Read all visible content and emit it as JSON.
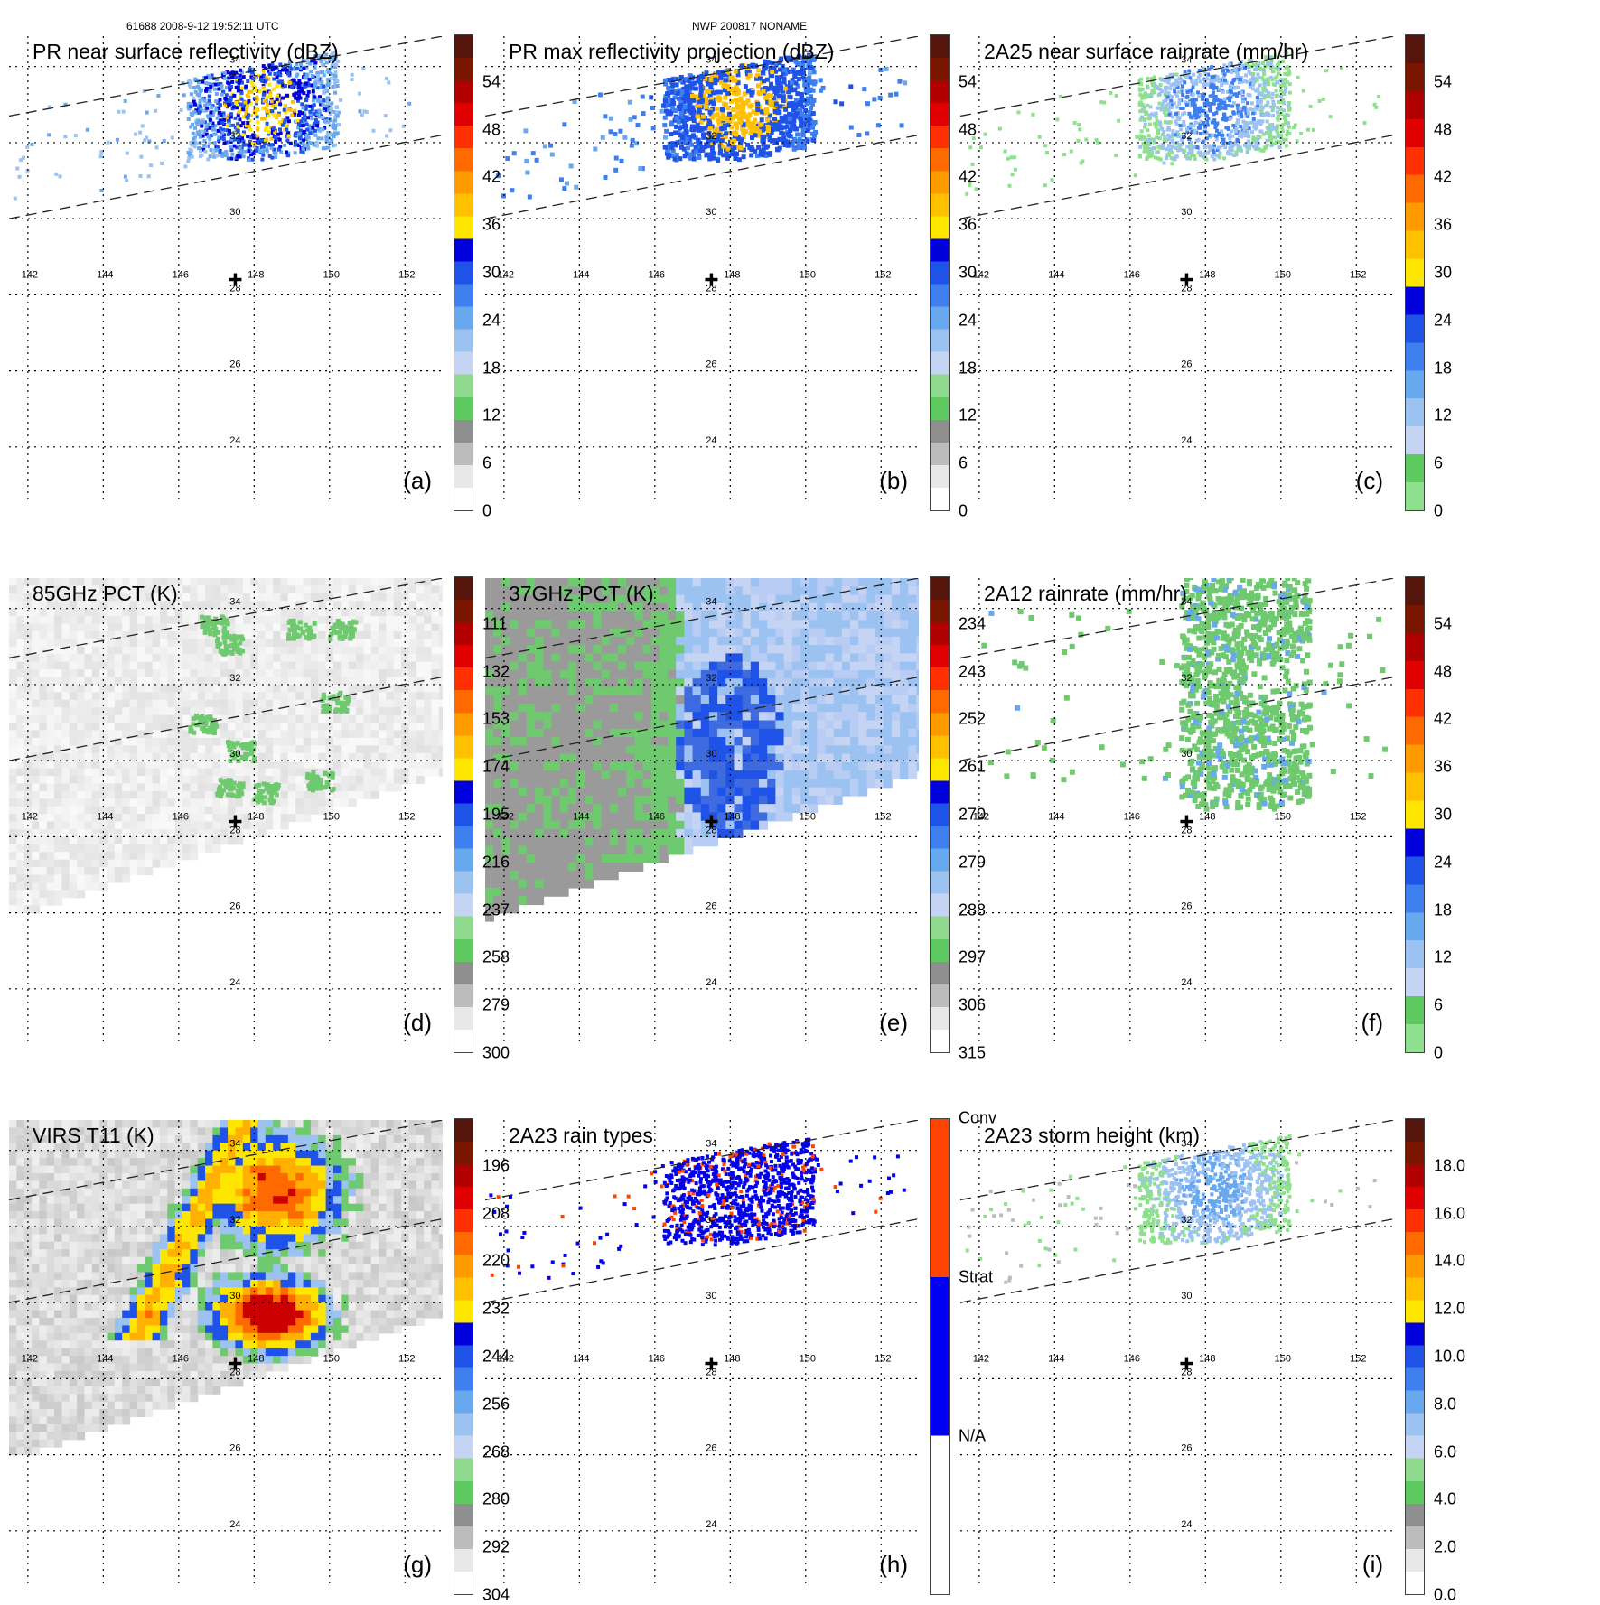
{
  "header": {
    "pass_info": "61688 2008-9-12 19:52:11 UTC",
    "storm_info": "NWP 200817 NONAME"
  },
  "map": {
    "lon_labels": [
      "142",
      "144",
      "146",
      "148",
      "150",
      "152"
    ],
    "lat_labels": [
      "34",
      "32",
      "30",
      "28",
      "26",
      "24"
    ]
  },
  "panels": [
    {
      "id": "a",
      "title": "PR near surface reflectivity (dBZ)",
      "letter": "(a)",
      "background": "white",
      "swath": "pr",
      "field": "pr_refl",
      "colorbar": {
        "ticks": [
          "54",
          "48",
          "42",
          "36",
          "30",
          "24",
          "18",
          "12",
          "6",
          "0"
        ]
      }
    },
    {
      "id": "b",
      "title": "PR max reflectivity projection (dBZ)",
      "letter": "(b)",
      "background": "white",
      "swath": "pr",
      "field": "pr_max",
      "colorbar": {
        "ticks": [
          "54",
          "48",
          "42",
          "36",
          "30",
          "24",
          "18",
          "12",
          "6",
          "0"
        ]
      }
    },
    {
      "id": "c",
      "title": "2A25 near surface rainrate (mm/hr)",
      "letter": "(c)",
      "background": "white",
      "swath": "pr",
      "field": "pr_rain",
      "colorbar": {
        "ticks": [
          "54",
          "48",
          "42",
          "36",
          "30",
          "24",
          "18",
          "12",
          "6",
          "0"
        ]
      }
    },
    {
      "id": "d",
      "title": "85GHz PCT (K)",
      "letter": "(d)",
      "background": "gray",
      "swath": "tmi",
      "field": "pct85",
      "colorbar": {
        "ticks": [
          "111",
          "132",
          "153",
          "174",
          "195",
          "216",
          "237",
          "258",
          "279",
          "300"
        ]
      }
    },
    {
      "id": "e",
      "title": "37GHz PCT (K)",
      "letter": "(e)",
      "background": "pct37",
      "swath": "tmi",
      "field": "pct37",
      "colorbar": {
        "ticks": [
          "234",
          "243",
          "252",
          "261",
          "270",
          "279",
          "288",
          "297",
          "306",
          "315"
        ]
      }
    },
    {
      "id": "f",
      "title": "2A12 rainrate (mm/hr)",
      "letter": "(f)",
      "background": "white",
      "swath": "tmi",
      "field": "rain12",
      "colorbar": {
        "ticks": [
          "54",
          "48",
          "42",
          "36",
          "30",
          "24",
          "18",
          "12",
          "6",
          "0"
        ]
      }
    },
    {
      "id": "g",
      "title": "VIRS T11 (K)",
      "letter": "(g)",
      "background": "gray",
      "swath": "virs",
      "field": "virs",
      "colorbar": {
        "ticks": [
          "196",
          "208",
          "220",
          "232",
          "244",
          "256",
          "268",
          "280",
          "292",
          "304"
        ]
      }
    },
    {
      "id": "h",
      "title": "2A23 rain types",
      "letter": "(h)",
      "background": "white",
      "swath": "pr",
      "field": "raintype",
      "colorbar": {
        "ticks": [
          "Conv",
          "Strat",
          "N/A"
        ]
      }
    },
    {
      "id": "i",
      "title": "2A23 storm height (km)",
      "letter": "(i)",
      "background": "white",
      "swath": "pr",
      "field": "height",
      "colorbar": {
        "ticks": [
          "18.0",
          "16.0",
          "14.0",
          "12.0",
          "10.0",
          "8.0",
          "6.0",
          "4.0",
          "2.0",
          "0.0"
        ]
      }
    }
  ],
  "colors": {
    "ten_level": [
      "#ffffff",
      "#e8e8e8",
      "#bcbcbc",
      "#8f8f8f",
      "#5ec95e",
      "#8fd98f",
      "#c6d4f4",
      "#9cc2f2",
      "#67a8ef",
      "#3e7ff0",
      "#1f53e8",
      "#0000dd",
      "#ffe600",
      "#ffc000",
      "#ff9a00",
      "#ff6a00",
      "#ff3000",
      "#e00000",
      "#b00000",
      "#7a1500",
      "#55150c"
    ],
    "rain_bar": [
      "#8ee08e",
      "#5ec95e",
      "#c6d4f4",
      "#9cc2f2",
      "#67a8ef",
      "#3e7ff0",
      "#1f53e8",
      "#0000dd",
      "#ffe600",
      "#ffc000",
      "#ff9a00",
      "#ff6a00",
      "#ff3000",
      "#e00000",
      "#b00000",
      "#7a1500",
      "#55150c"
    ],
    "raintype": [
      "#ffffff",
      "#0000ee",
      "#ff4400"
    ]
  },
  "chart_data": {
    "type": "heatmap",
    "domain": {
      "lon_range": [
        141.5,
        153.0
      ],
      "lat_range": [
        22.5,
        34.8
      ]
    },
    "storm_center": {
      "lon": 147.5,
      "lat": 28.4
    },
    "pr_swath_edges": [
      {
        "lon": [
          141.5,
          153.0
        ],
        "lat": [
          32.7,
          34.8
        ]
      },
      {
        "lon": [
          141.5,
          153.0
        ],
        "lat": [
          30.0,
          32.2
        ]
      }
    ],
    "tmi_swath_edge_south": {
      "lon": [
        141.5,
        153.0
      ],
      "lat": [
        26.0,
        29.8
      ]
    },
    "fields": {
      "pr_refl": {
        "units": "dBZ",
        "range": [
          0,
          60
        ]
      },
      "pr_max": {
        "units": "dBZ",
        "range": [
          0,
          60
        ]
      },
      "pr_rain": {
        "units": "mm/hr",
        "range": [
          0,
          60
        ]
      },
      "pct85": {
        "units": "K",
        "range": [
          90,
          300
        ]
      },
      "pct37": {
        "units": "K",
        "range": [
          225,
          315
        ]
      },
      "rain12": {
        "units": "mm/hr",
        "range": [
          0,
          60
        ]
      },
      "virs": {
        "units": "K",
        "range": [
          184,
          304
        ]
      },
      "raintype": {
        "categories": [
          "N/A",
          "Strat",
          "Conv"
        ]
      },
      "height": {
        "units": "km",
        "range": [
          0,
          20
        ]
      }
    }
  }
}
